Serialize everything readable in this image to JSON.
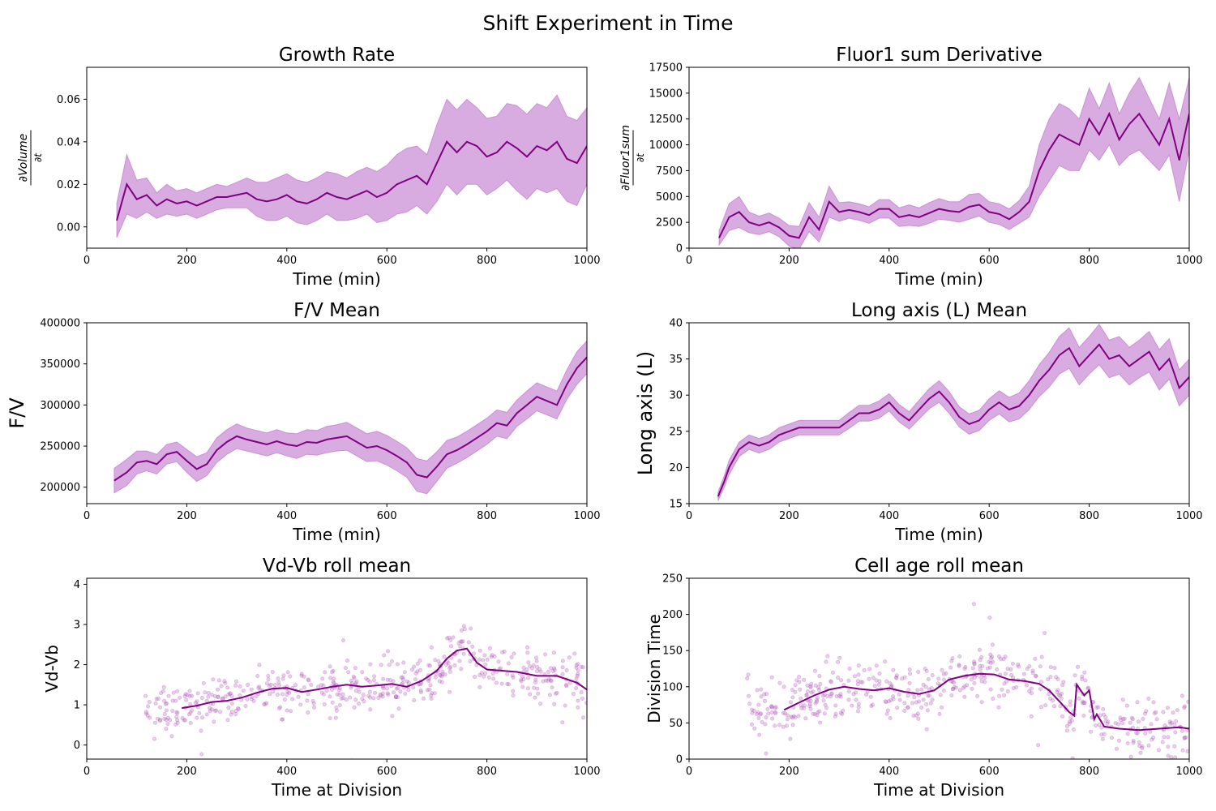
{
  "figure": {
    "title": "Shift Experiment in Time"
  },
  "colors": {
    "line": "#800080",
    "band": "#ba68c8",
    "points": "#c67ccf"
  },
  "chart_data": [
    {
      "id": "growth",
      "type": "line",
      "title": "Growth Rate",
      "xlabel": "Time (min)",
      "ylabel": "∂Volume / ∂t",
      "ylabel_num": "∂Volume",
      "ylabel_den": "∂t",
      "xlim": [
        0,
        1000
      ],
      "ylim": [
        -0.01,
        0.075
      ],
      "xticks": [
        0,
        200,
        400,
        600,
        800,
        1000
      ],
      "yticks": [
        0.0,
        0.02,
        0.04,
        0.06
      ],
      "ytick_decimals": 2,
      "series": [
        {
          "x": [
            60,
            80,
            100,
            120,
            140,
            160,
            180,
            200,
            220,
            240,
            260,
            280,
            300,
            320,
            340,
            360,
            380,
            400,
            420,
            440,
            460,
            480,
            500,
            520,
            540,
            560,
            580,
            600,
            620,
            640,
            660,
            680,
            700,
            720,
            740,
            760,
            780,
            800,
            820,
            840,
            860,
            880,
            900,
            920,
            940,
            960,
            980,
            1000
          ],
          "y": [
            0.003,
            0.02,
            0.013,
            0.015,
            0.01,
            0.013,
            0.011,
            0.012,
            0.01,
            0.012,
            0.014,
            0.014,
            0.015,
            0.016,
            0.013,
            0.012,
            0.013,
            0.015,
            0.012,
            0.011,
            0.013,
            0.016,
            0.014,
            0.013,
            0.015,
            0.017,
            0.014,
            0.016,
            0.02,
            0.022,
            0.024,
            0.02,
            0.03,
            0.04,
            0.035,
            0.04,
            0.038,
            0.033,
            0.035,
            0.04,
            0.037,
            0.033,
            0.038,
            0.036,
            0.04,
            0.032,
            0.03,
            0.038
          ],
          "spread": [
            0.008,
            0.014,
            0.009,
            0.008,
            0.006,
            0.007,
            0.006,
            0.006,
            0.006,
            0.006,
            0.006,
            0.005,
            0.006,
            0.007,
            0.008,
            0.009,
            0.01,
            0.01,
            0.01,
            0.01,
            0.01,
            0.01,
            0.011,
            0.01,
            0.011,
            0.011,
            0.012,
            0.013,
            0.014,
            0.015,
            0.014,
            0.014,
            0.018,
            0.02,
            0.02,
            0.02,
            0.018,
            0.018,
            0.017,
            0.018,
            0.02,
            0.02,
            0.02,
            0.02,
            0.022,
            0.02,
            0.02,
            0.018
          ]
        }
      ]
    },
    {
      "id": "fluor",
      "type": "line",
      "title": "Fluor1 sum Derivative",
      "xlabel": "Time (min)",
      "ylabel": "∂Fluor1sum / ∂t",
      "ylabel_num": "∂Fluor1sum",
      "ylabel_den": "∂t",
      "xlim": [
        0,
        1000
      ],
      "ylim": [
        0,
        17500
      ],
      "xticks": [
        0,
        200,
        400,
        600,
        800,
        1000
      ],
      "yticks": [
        0,
        2500,
        5000,
        7500,
        10000,
        12500,
        15000,
        17500
      ],
      "ytick_decimals": 0,
      "series": [
        {
          "x": [
            60,
            80,
            100,
            120,
            140,
            160,
            180,
            200,
            220,
            240,
            260,
            280,
            300,
            320,
            340,
            360,
            380,
            400,
            420,
            440,
            460,
            480,
            500,
            520,
            540,
            560,
            580,
            600,
            620,
            640,
            660,
            680,
            700,
            720,
            740,
            760,
            780,
            800,
            820,
            840,
            860,
            880,
            900,
            920,
            940,
            960,
            980,
            1000
          ],
          "y": [
            1000,
            3000,
            3500,
            2500,
            2200,
            2500,
            2000,
            1200,
            1000,
            3000,
            1800,
            4500,
            3500,
            3700,
            3500,
            3200,
            3800,
            3800,
            3000,
            3200,
            3000,
            3400,
            3800,
            3600,
            3500,
            4000,
            4200,
            3500,
            3300,
            2800,
            3500,
            4500,
            7500,
            9500,
            11000,
            10500,
            10000,
            12500,
            11000,
            13000,
            10500,
            12000,
            13000,
            11500,
            10000,
            12500,
            8500,
            13000
          ],
          "spread": [
            700,
            1300,
            1500,
            1000,
            900,
            900,
            900,
            1000,
            1100,
            1400,
            1200,
            1500,
            900,
            800,
            800,
            800,
            900,
            900,
            900,
            1000,
            900,
            1000,
            1000,
            900,
            1000,
            1200,
            1100,
            1000,
            1000,
            1000,
            1100,
            1500,
            2500,
            3000,
            3000,
            3000,
            2500,
            3000,
            2500,
            3000,
            2500,
            3000,
            3500,
            3000,
            2500,
            3500,
            4000,
            3500
          ]
        }
      ]
    },
    {
      "id": "fv",
      "type": "line",
      "title": "F/V Mean",
      "xlabel": "Time (min)",
      "ylabel": "F/V",
      "xlim": [
        0,
        1000
      ],
      "ylim": [
        180000,
        400000
      ],
      "xticks": [
        0,
        200,
        400,
        600,
        800,
        1000
      ],
      "yticks": [
        200000,
        250000,
        300000,
        350000,
        400000
      ],
      "ytick_decimals": 0,
      "series": [
        {
          "x": [
            55,
            80,
            100,
            120,
            140,
            160,
            180,
            200,
            220,
            240,
            260,
            280,
            300,
            320,
            340,
            360,
            380,
            400,
            420,
            440,
            460,
            480,
            500,
            520,
            540,
            560,
            580,
            600,
            620,
            640,
            660,
            680,
            700,
            720,
            740,
            760,
            780,
            800,
            820,
            840,
            860,
            880,
            900,
            920,
            940,
            960,
            980,
            1000
          ],
          "y": [
            208000,
            218000,
            230000,
            232000,
            228000,
            240000,
            243000,
            232000,
            222000,
            228000,
            245000,
            255000,
            262000,
            258000,
            255000,
            252000,
            256000,
            252000,
            250000,
            255000,
            254000,
            258000,
            260000,
            262000,
            255000,
            248000,
            250000,
            245000,
            238000,
            230000,
            215000,
            212000,
            225000,
            240000,
            245000,
            252000,
            260000,
            268000,
            278000,
            275000,
            290000,
            300000,
            310000,
            305000,
            300000,
            325000,
            345000,
            358000
          ],
          "spread": [
            15000,
            16000,
            14000,
            12000,
            12000,
            12000,
            12000,
            14000,
            15000,
            14000,
            15000,
            15000,
            15000,
            14000,
            14000,
            14000,
            14000,
            14000,
            15000,
            15000,
            15000,
            16000,
            16000,
            17000,
            17000,
            17000,
            18000,
            18000,
            18000,
            18000,
            20000,
            20000,
            18000,
            17000,
            16000,
            16000,
            16000,
            16000,
            16000,
            16000,
            16000,
            17000,
            17000,
            17000,
            17000,
            18000,
            20000,
            20000
          ]
        }
      ]
    },
    {
      "id": "longaxis",
      "type": "line",
      "title": "Long axis (L) Mean",
      "xlabel": "Time (min)",
      "ylabel": "Long axis (L)",
      "xlim": [
        0,
        1000
      ],
      "ylim": [
        15,
        40
      ],
      "xticks": [
        0,
        200,
        400,
        600,
        800,
        1000
      ],
      "yticks": [
        15,
        20,
        25,
        30,
        35,
        40
      ],
      "ytick_decimals": 0,
      "series": [
        {
          "x": [
            58,
            70,
            80,
            100,
            120,
            140,
            160,
            180,
            200,
            220,
            240,
            260,
            280,
            300,
            320,
            340,
            360,
            380,
            400,
            420,
            440,
            460,
            480,
            500,
            520,
            540,
            560,
            580,
            600,
            620,
            640,
            660,
            680,
            700,
            720,
            740,
            760,
            780,
            800,
            820,
            840,
            860,
            880,
            900,
            920,
            940,
            960,
            980,
            1000
          ],
          "y": [
            16,
            18,
            20,
            22.5,
            23.5,
            23,
            23.5,
            24.5,
            25,
            25.5,
            25.5,
            25.5,
            25.5,
            25.5,
            26.5,
            27.5,
            27.5,
            28,
            29,
            27.5,
            26.5,
            28,
            29.5,
            30.5,
            29,
            27,
            26,
            26.5,
            28,
            29,
            28,
            28.5,
            30,
            32,
            33.5,
            35.5,
            36.5,
            34,
            35.5,
            37,
            35,
            35.5,
            34,
            35,
            36,
            33.5,
            35,
            31,
            32.5
          ],
          "spread": [
            0.6,
            0.8,
            1.0,
            1.0,
            1.0,
            1.0,
            1.0,
            1.0,
            1.0,
            1.0,
            1.0,
            1.0,
            1.0,
            1.0,
            1.1,
            1.1,
            1.1,
            1.2,
            1.2,
            1.2,
            1.2,
            1.3,
            1.4,
            1.5,
            1.5,
            1.4,
            1.4,
            1.4,
            1.5,
            1.6,
            1.7,
            1.8,
            2.0,
            2.2,
            2.4,
            2.6,
            2.8,
            2.6,
            2.6,
            2.8,
            2.6,
            2.6,
            2.6,
            2.6,
            2.8,
            2.8,
            2.8,
            2.5,
            2.5
          ]
        }
      ]
    },
    {
      "id": "vdvb",
      "type": "scatter",
      "title": "Vd-Vb roll mean",
      "xlabel": "Time at Division",
      "ylabel": "Vd-Vb",
      "xlim": [
        0,
        1000
      ],
      "ylim": [
        -0.35,
        4.15
      ],
      "xticks": [
        0,
        200,
        400,
        600,
        800,
        1000
      ],
      "yticks": [
        0,
        1,
        2,
        3,
        4
      ],
      "ytick_decimals": 0,
      "trend": {
        "x": [
          190,
          220,
          250,
          280,
          310,
          340,
          370,
          400,
          430,
          460,
          490,
          520,
          550,
          580,
          610,
          640,
          670,
          700,
          720,
          740,
          760,
          780,
          800,
          830,
          860,
          900,
          940,
          980,
          1000
        ],
        "y": [
          0.92,
          0.98,
          1.07,
          1.1,
          1.18,
          1.3,
          1.4,
          1.42,
          1.32,
          1.38,
          1.45,
          1.5,
          1.45,
          1.48,
          1.52,
          1.45,
          1.6,
          1.85,
          2.15,
          2.35,
          2.4,
          2.05,
          1.88,
          1.85,
          1.82,
          1.72,
          1.72,
          1.55,
          1.38
        ]
      },
      "points_seed": 7,
      "points_n": 520,
      "points_xrange": [
        115,
        1000
      ],
      "points_noise": 0.45
    },
    {
      "id": "cellage",
      "type": "scatter",
      "title": "Cell age roll mean",
      "xlabel": "Time at Division",
      "ylabel": "Division Time",
      "xlim": [
        0,
        1000
      ],
      "ylim": [
        0,
        250
      ],
      "xticks": [
        0,
        200,
        400,
        600,
        800,
        1000
      ],
      "yticks": [
        0,
        50,
        100,
        150,
        200,
        250
      ],
      "ytick_decimals": 0,
      "trend": {
        "x": [
          190,
          220,
          250,
          280,
          310,
          340,
          370,
          400,
          430,
          460,
          490,
          520,
          550,
          580,
          610,
          640,
          670,
          700,
          720,
          740,
          760,
          770,
          775,
          790,
          800,
          810,
          815,
          830,
          860,
          900,
          940,
          980,
          1000
        ],
        "y": [
          68,
          78,
          88,
          96,
          100,
          97,
          95,
          98,
          93,
          90,
          95,
          110,
          115,
          118,
          117,
          110,
          108,
          104,
          95,
          80,
          65,
          60,
          103,
          88,
          95,
          55,
          62,
          45,
          42,
          40,
          42,
          44,
          42
        ]
      },
      "points_seed": 11,
      "points_n": 520,
      "points_xrange": [
        115,
        1000
      ],
      "points_noise": 28
    }
  ]
}
